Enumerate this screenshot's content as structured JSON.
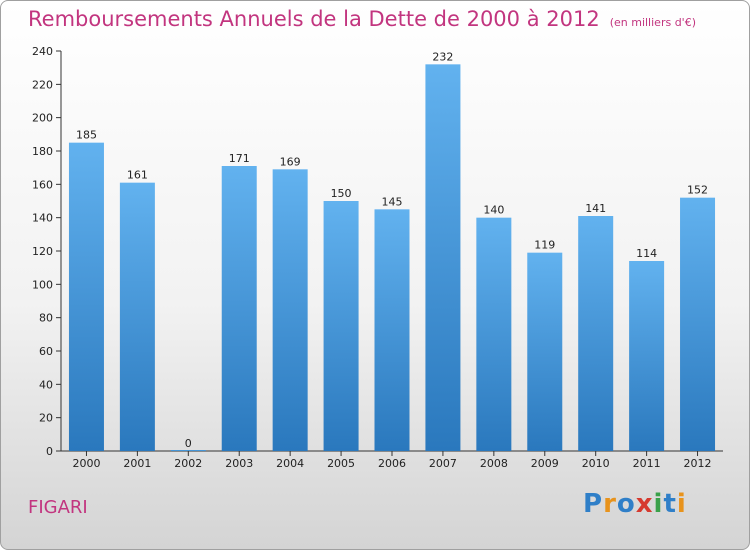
{
  "header": {
    "title": "Remboursements Annuels de la Dette de 2000 à 2012",
    "subtitle": "(en milliers d'€)"
  },
  "footer": {
    "commune": "FIGARI",
    "logo_letters": [
      {
        "ch": "P",
        "color": "#2f7fc8"
      },
      {
        "ch": "r",
        "color": "#e8931c"
      },
      {
        "ch": "o",
        "color": "#2f7fc8"
      },
      {
        "ch": "x",
        "color": "#d63a2f"
      },
      {
        "ch": "i",
        "color": "#3aa14a"
      },
      {
        "ch": "t",
        "color": "#2f7fc8"
      },
      {
        "ch": "i",
        "color": "#e8931c"
      }
    ]
  },
  "colors": {
    "bar_top": "#62b2ef",
    "bar_bottom": "#2a78bd",
    "accent": "#c2357f"
  },
  "chart_data": {
    "type": "bar",
    "categories": [
      "2000",
      "2001",
      "2002",
      "2003",
      "2004",
      "2005",
      "2006",
      "2007",
      "2008",
      "2009",
      "2010",
      "2011",
      "2012"
    ],
    "values": [
      185,
      161,
      0,
      171,
      169,
      150,
      145,
      232,
      140,
      119,
      141,
      114,
      152
    ],
    "ylim": [
      0,
      240
    ],
    "yticks": [
      0,
      20,
      40,
      60,
      80,
      100,
      120,
      140,
      160,
      180,
      200,
      220,
      240
    ],
    "grid": false,
    "legend": "none"
  }
}
